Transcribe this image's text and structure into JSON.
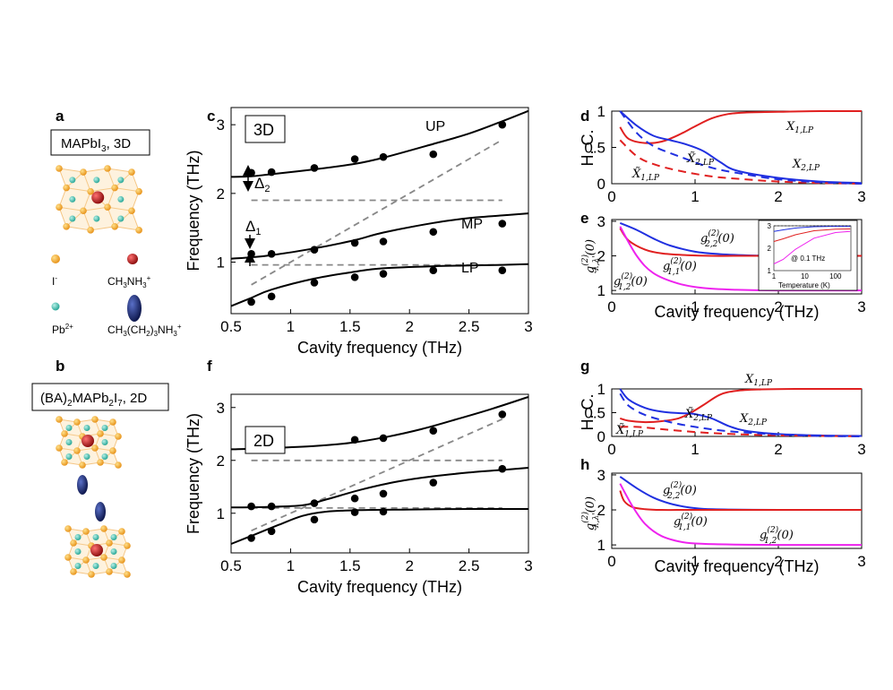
{
  "panels": {
    "a": {
      "label": "a",
      "title": "MAPbI",
      "title_sub": "3",
      "title_end": ", 3D"
    },
    "b": {
      "label": "b",
      "title_pre": "(BA)",
      "title_s1": "2",
      "title_mid": "MAPb",
      "title_s2": "2",
      "title_i": "I",
      "title_s3": "7",
      "title_end": ", 2D"
    },
    "c": {
      "label": "c",
      "tag": "3D"
    },
    "d": {
      "label": "d"
    },
    "e": {
      "label": "e"
    },
    "f": {
      "label": "f",
      "tag": "2D"
    },
    "g": {
      "label": "g"
    },
    "h": {
      "label": "h"
    }
  },
  "legend": {
    "iodide": "I",
    "iodide_sup": "-",
    "ma": "CH",
    "ma_s1": "3",
    "ma_mid": "NH",
    "ma_s2": "3",
    "ma_sup": "+",
    "lead": "Pb",
    "lead_sup": "2+",
    "ba": "CH",
    "ba_s1": "3",
    "ba_mid": "(CH",
    "ba_s2": "2",
    "ba_mid2": ")",
    "ba_s3": "3",
    "ba_end": "NH",
    "ba_s4": "3",
    "ba_sup": "+",
    "colors": {
      "iodide": "#f0a830",
      "ma": "#b81818",
      "lead": "#3fb8a8",
      "ba": "#1a2a6c"
    }
  },
  "annotations": {
    "up": "UP",
    "mp": "MP",
    "lp": "LP",
    "delta1": "Δ",
    "delta1_sub": "1",
    "delta2": "Δ",
    "delta2_sub": "2",
    "hc": "H. C.",
    "x1lp": "X",
    "x1lp_sub": "1,LP",
    "x2lp": "X",
    "x2lp_sub": "2,LP",
    "xt1lp": "X̃",
    "xt1lp_sub": "1,LP",
    "xt2lp": "X̃",
    "xt2lp_sub": "2,LP",
    "g22": "g",
    "g22_sub": "2,2",
    "g11": "g",
    "g11_sub": "1,1",
    "g12": "g",
    "g12_sub": "1,2",
    "gsup": "(2)",
    "g0": "(0)",
    "gy": "g",
    "gy_sub": "λ,λ'",
    "gy_end": "(0)",
    "inset_freq": "@ 0.1 THz",
    "inset_xlabel": "Temperature (K)"
  },
  "chart_data": [
    {
      "panel": "c",
      "type": "line",
      "title": "3D",
      "xlabel": "Cavity frequency (THz)",
      "ylabel": "Frequency (THz)",
      "xlim": [
        0.5,
        3.0
      ],
      "ylim": [
        0.25,
        3.25
      ],
      "xticks": [
        "0.5",
        "1",
        "1.5",
        "2",
        "2.5",
        "3"
      ],
      "yticks": [
        "1",
        "2",
        "3"
      ],
      "measured_x": [
        0.67,
        0.84,
        1.2,
        1.54,
        1.78,
        2.2,
        2.78
      ],
      "series": [
        {
          "name": "UP",
          "x": [
            0.5,
            0.67,
            0.84,
            1.2,
            1.54,
            1.78,
            2.2,
            2.5,
            2.78,
            3.0
          ],
          "y": [
            2.24,
            2.25,
            2.28,
            2.35,
            2.43,
            2.52,
            2.72,
            2.87,
            3.05,
            3.2
          ]
        },
        {
          "name": "MP",
          "x": [
            0.5,
            0.67,
            0.84,
            1.2,
            1.54,
            1.78,
            2.2,
            2.5,
            2.78,
            3.0
          ],
          "y": [
            1.05,
            1.07,
            1.1,
            1.2,
            1.32,
            1.43,
            1.57,
            1.64,
            1.68,
            1.71
          ]
        },
        {
          "name": "LP",
          "x": [
            0.5,
            0.67,
            0.84,
            1.2,
            1.54,
            1.78,
            2.2,
            2.5,
            2.78,
            3.0
          ],
          "y": [
            0.36,
            0.48,
            0.6,
            0.76,
            0.86,
            0.91,
            0.94,
            0.95,
            0.96,
            0.97
          ]
        }
      ],
      "points": [
        {
          "name": "UP",
          "y": [
            2.3,
            2.31,
            2.37,
            2.5,
            2.53,
            2.57,
            3.0
          ]
        },
        {
          "name": "MP",
          "y": [
            1.12,
            1.12,
            1.18,
            1.28,
            1.3,
            1.44,
            1.56
          ]
        },
        {
          "name": "LP",
          "y": [
            0.42,
            0.5,
            0.7,
            0.78,
            0.83,
            0.88,
            0.88
          ]
        }
      ],
      "dashed": [
        {
          "name": "diagonal",
          "x": [
            0.67,
            2.78
          ],
          "y": [
            0.67,
            2.78
          ]
        },
        {
          "name": "exciton2",
          "x": [
            0.67,
            2.78
          ],
          "y": [
            1.9,
            1.9
          ]
        },
        {
          "name": "exciton1",
          "x": [
            0.67,
            2.78
          ],
          "y": [
            0.96,
            0.96
          ]
        }
      ],
      "annotations": [
        "UP",
        "MP",
        "LP",
        "Δ1",
        "Δ2"
      ]
    },
    {
      "panel": "f",
      "type": "line",
      "title": "2D",
      "xlabel": "Cavity frequency (THz)",
      "ylabel": "Frequency (THz)",
      "xlim": [
        0.5,
        3.0
      ],
      "ylim": [
        0.25,
        3.25
      ],
      "xticks": [
        "0.5",
        "1",
        "1.5",
        "2",
        "2.5",
        "3"
      ],
      "yticks": [
        "1",
        "2",
        "3"
      ],
      "measured_x": [
        0.67,
        0.84,
        1.2,
        1.54,
        1.78,
        2.2,
        2.78
      ],
      "series": [
        {
          "name": "UP",
          "x": [
            0.5,
            0.8,
            1.2,
            1.5,
            1.8,
            2.1,
            2.4,
            2.7,
            3.0
          ],
          "y": [
            2.21,
            2.23,
            2.27,
            2.33,
            2.44,
            2.59,
            2.78,
            2.98,
            3.2
          ]
        },
        {
          "name": "MP",
          "x": [
            0.5,
            0.8,
            1.1,
            1.3,
            1.6,
            1.9,
            2.2,
            2.5,
            2.78,
            3.0
          ],
          "y": [
            1.11,
            1.12,
            1.15,
            1.26,
            1.45,
            1.6,
            1.7,
            1.77,
            1.82,
            1.86
          ]
        },
        {
          "name": "LP",
          "x": [
            0.5,
            0.7,
            0.9,
            1.1,
            1.3,
            1.6,
            2.0,
            2.5,
            3.0
          ],
          "y": [
            0.42,
            0.6,
            0.78,
            0.95,
            1.03,
            1.06,
            1.07,
            1.08,
            1.08
          ]
        }
      ],
      "points": [
        {
          "name": "UP",
          "y": [
            null,
            null,
            null,
            2.39,
            2.42,
            2.56,
            2.87
          ]
        },
        {
          "name": "MP",
          "y": [
            1.13,
            1.13,
            1.19,
            1.28,
            1.37,
            1.58,
            1.84
          ]
        },
        {
          "name": "LP",
          "y": [
            0.53,
            0.66,
            0.88,
            1.02,
            1.03,
            null,
            null
          ]
        }
      ],
      "dashed": [
        {
          "name": "diagonal",
          "x": [
            0.67,
            2.78
          ],
          "y": [
            0.67,
            2.78
          ]
        },
        {
          "name": "exciton2",
          "x": [
            0.67,
            2.78
          ],
          "y": [
            2.0,
            2.0
          ]
        },
        {
          "name": "exciton1",
          "x": [
            0.67,
            2.78
          ],
          "y": [
            1.1,
            1.1
          ]
        }
      ]
    },
    {
      "panel": "d",
      "type": "line",
      "xlabel": "",
      "ylabel": "H. C.",
      "xlim": [
        0,
        3
      ],
      "ylim": [
        0,
        1
      ],
      "xticks": [
        "0",
        "1",
        "2",
        "3"
      ],
      "yticks": [
        "0",
        "0.5",
        "1"
      ],
      "series": [
        {
          "name": "X1,LP",
          "color": "#e02020",
          "dash": false,
          "x": [
            0.1,
            0.2,
            0.4,
            0.6,
            0.8,
            1.0,
            1.2,
            1.4,
            1.6,
            2.0,
            2.5,
            3.0
          ],
          "y": [
            0.78,
            0.62,
            0.56,
            0.58,
            0.67,
            0.79,
            0.9,
            0.96,
            0.98,
            0.99,
            1.0,
            1.0
          ]
        },
        {
          "name": "X2,LP",
          "color": "#2030e0",
          "dash": false,
          "x": [
            0.1,
            0.3,
            0.5,
            0.7,
            0.9,
            1.1,
            1.3,
            1.5,
            2.0,
            2.5,
            3.0
          ],
          "y": [
            1.0,
            0.8,
            0.66,
            0.6,
            0.54,
            0.45,
            0.3,
            0.18,
            0.08,
            0.03,
            0.01
          ]
        },
        {
          "name": "X~1,LP",
          "color": "#e02020",
          "dash": true,
          "x": [
            0.1,
            0.3,
            0.5,
            0.8,
            1.2,
            1.6,
            2.0,
            2.5,
            3.0
          ],
          "y": [
            0.6,
            0.38,
            0.27,
            0.18,
            0.1,
            0.06,
            0.03,
            0.01,
            0.0
          ]
        },
        {
          "name": "X~2,LP",
          "color": "#2030e0",
          "dash": true,
          "x": [
            0.1,
            0.3,
            0.5,
            0.8,
            1.2,
            1.6,
            2.0,
            2.5,
            3.0
          ],
          "y": [
            1.0,
            0.7,
            0.52,
            0.38,
            0.22,
            0.13,
            0.06,
            0.02,
            0.0
          ]
        }
      ]
    },
    {
      "panel": "e",
      "type": "line",
      "xlabel": "Cavity frequency (THz)",
      "ylabel": "g(2)λ,λ'(0)",
      "xlim": [
        0,
        3
      ],
      "ylim": [
        0.9,
        3.05
      ],
      "xticks": [
        "0",
        "1",
        "2",
        "3"
      ],
      "yticks": [
        "1",
        "2",
        "3"
      ],
      "series": [
        {
          "name": "g(2)2,2(0)",
          "color": "#2030e0",
          "x": [
            0.1,
            0.3,
            0.5,
            0.7,
            1.0,
            1.3,
            1.7,
            2.0,
            2.5,
            3.0
          ],
          "y": [
            2.95,
            2.75,
            2.5,
            2.3,
            2.12,
            2.05,
            2.01,
            2.0,
            2.0,
            2.0
          ]
        },
        {
          "name": "g(2)1,1(0)",
          "color": "#e02020",
          "x": [
            0.1,
            0.2,
            0.4,
            0.6,
            0.9,
            1.2,
            1.6,
            2.0,
            3.0
          ],
          "y": [
            2.8,
            2.45,
            2.18,
            2.07,
            2.02,
            2.0,
            2.0,
            2.0,
            2.0
          ]
        },
        {
          "name": "g(2)1,2(0)",
          "color": "#ee22ee",
          "x": [
            0.1,
            0.3,
            0.5,
            0.8,
            1.1,
            1.5,
            2.0,
            3.0
          ],
          "y": [
            2.85,
            2.0,
            1.5,
            1.2,
            1.07,
            1.02,
            1.0,
            1.0
          ]
        }
      ],
      "inset": {
        "xlabel": "Temperature (K)",
        "xticks": [
          "1",
          "10",
          "100"
        ],
        "yticks": [
          "1",
          "2",
          "3"
        ],
        "note": "@ 0.1 THz"
      }
    },
    {
      "panel": "g",
      "type": "line",
      "xlabel": "",
      "ylabel": "H. C.",
      "xlim": [
        0,
        3
      ],
      "ylim": [
        0,
        1
      ],
      "xticks": [
        "0",
        "1",
        "2",
        "3"
      ],
      "yticks": [
        "0",
        "0.5",
        "1"
      ],
      "series": [
        {
          "name": "X1,LP",
          "color": "#e02020",
          "dash": false,
          "x": [
            0.1,
            0.2,
            0.4,
            0.6,
            0.8,
            0.95,
            1.1,
            1.3,
            1.5,
            1.8,
            2.2,
            3.0
          ],
          "y": [
            0.38,
            0.33,
            0.3,
            0.32,
            0.38,
            0.5,
            0.66,
            0.88,
            0.96,
            0.99,
            1.0,
            1.0
          ]
        },
        {
          "name": "X2,LP",
          "color": "#2030e0",
          "dash": false,
          "x": [
            0.1,
            0.2,
            0.4,
            0.6,
            0.8,
            1.0,
            1.2,
            1.4,
            1.6,
            2.0,
            2.5,
            3.0
          ],
          "y": [
            1.0,
            0.78,
            0.6,
            0.52,
            0.49,
            0.47,
            0.38,
            0.22,
            0.12,
            0.05,
            0.02,
            0.01
          ]
        },
        {
          "name": "X~1,LP",
          "color": "#e02020",
          "dash": true,
          "x": [
            0.1,
            0.3,
            0.5,
            0.8,
            1.2,
            1.6,
            2.0,
            2.5,
            3.0
          ],
          "y": [
            0.2,
            0.2,
            0.17,
            0.12,
            0.07,
            0.04,
            0.02,
            0.01,
            0.0
          ]
        },
        {
          "name": "X~2,LP",
          "color": "#2030e0",
          "dash": true,
          "x": [
            0.1,
            0.2,
            0.4,
            0.7,
            1.0,
            1.4,
            2.0,
            2.5,
            3.0
          ],
          "y": [
            0.9,
            0.65,
            0.45,
            0.3,
            0.2,
            0.11,
            0.04,
            0.01,
            0.0
          ]
        }
      ]
    },
    {
      "panel": "h",
      "type": "line",
      "xlabel": "Cavity frequency (THz)",
      "ylabel": "g(2)λ,λ'(0)",
      "xlim": [
        0,
        3
      ],
      "ylim": [
        0.9,
        3.05
      ],
      "xticks": [
        "0",
        "1",
        "2",
        "3"
      ],
      "yticks": [
        "1",
        "2",
        "3"
      ],
      "series": [
        {
          "name": "g(2)2,2(0)",
          "color": "#2030e0",
          "x": [
            0.1,
            0.3,
            0.5,
            0.7,
            0.9,
            1.1,
            1.4,
            2.0,
            3.0
          ],
          "y": [
            2.95,
            2.62,
            2.35,
            2.18,
            2.08,
            2.03,
            2.01,
            2.0,
            2.0
          ]
        },
        {
          "name": "g(2)1,1(0)",
          "color": "#e02020",
          "x": [
            0.1,
            0.15,
            0.25,
            0.4,
            0.6,
            1.0,
            2.0,
            3.0
          ],
          "y": [
            2.55,
            2.25,
            2.08,
            2.02,
            2.0,
            2.0,
            2.0,
            2.0
          ]
        },
        {
          "name": "g(2)1,2(0)",
          "color": "#ee22ee",
          "x": [
            0.1,
            0.25,
            0.4,
            0.6,
            0.85,
            1.1,
            1.5,
            2.0,
            3.0
          ],
          "y": [
            2.75,
            2.1,
            1.6,
            1.25,
            1.08,
            1.03,
            1.01,
            1.0,
            1.0
          ]
        }
      ]
    }
  ]
}
